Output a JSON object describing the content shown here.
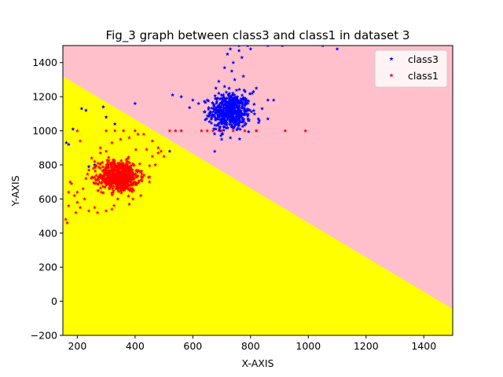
{
  "chart_data": {
    "type": "scatter",
    "title": "Fig_3 graph between class3 and class1 in dataset 3",
    "xlabel": "X-AXIS",
    "ylabel": "Y-AXIS",
    "xlim": [
      150,
      1500
    ],
    "ylim": [
      -200,
      1500
    ],
    "xticks": [
      200,
      400,
      600,
      800,
      1000,
      1200,
      1400
    ],
    "yticks": [
      -200,
      0,
      200,
      400,
      600,
      800,
      1000,
      1200,
      1400
    ],
    "grid": false,
    "legend_position": "top-right",
    "decision_boundary": {
      "points": [
        [
          150,
          1320
        ],
        [
          1500,
          -45
        ]
      ],
      "upper_region_color": "#ffc0cb",
      "lower_region_color": "#ffff00"
    },
    "series": [
      {
        "name": "class3",
        "color": "#0000ff",
        "marker": "star",
        "cluster": {
          "center": [
            730,
            1110
          ],
          "spread": [
            35,
            55
          ],
          "count": 520
        },
        "points": [
          [
            162,
            930
          ],
          [
            170,
            920
          ],
          [
            185,
            1010
          ],
          [
            215,
            1130
          ],
          [
            230,
            1120
          ],
          [
            240,
            790
          ],
          [
            260,
            800
          ],
          [
            290,
            1140
          ],
          [
            300,
            1080
          ],
          [
            330,
            1040
          ],
          [
            400,
            1160
          ],
          [
            520,
            880
          ],
          [
            530,
            1210
          ],
          [
            560,
            1200
          ],
          [
            600,
            1180
          ],
          [
            620,
            1160
          ],
          [
            660,
            1110
          ],
          [
            680,
            1010
          ],
          [
            690,
            1290
          ],
          [
            710,
            1370
          ],
          [
            720,
            1450
          ],
          [
            740,
            1400
          ],
          [
            760,
            1470
          ],
          [
            790,
            1500
          ],
          [
            810,
            1230
          ],
          [
            830,
            1060
          ],
          [
            860,
            1180
          ],
          [
            880,
            1180
          ],
          [
            910,
            1500
          ],
          [
            1050,
            1500
          ],
          [
            1100,
            1480
          ],
          [
            860,
            1500
          ],
          [
            760,
            1500
          ],
          [
            700,
            950
          ],
          [
            840,
            1130
          ],
          [
            820,
            1000
          ],
          [
            860,
            1070
          ],
          [
            650,
            1180
          ],
          [
            730,
            1480
          ],
          [
            770,
            1430
          ],
          [
            745,
            1300
          ],
          [
            710,
            1260
          ],
          [
            690,
            1220
          ],
          [
            800,
            1480
          ],
          [
            680,
            1250
          ],
          [
            735,
            1350
          ],
          [
            775,
            1320
          ],
          [
            640,
            1110
          ],
          [
            695,
            1000
          ],
          [
            820,
            1250
          ]
        ]
      },
      {
        "name": "class1",
        "color": "#ff0000",
        "marker": "star",
        "cluster": {
          "center": [
            345,
            735
          ],
          "spread": [
            35,
            45
          ],
          "count": 650
        },
        "points": [
          [
            160,
            480
          ],
          [
            165,
            460
          ],
          [
            170,
            640
          ],
          [
            180,
            690
          ],
          [
            190,
            620
          ],
          [
            200,
            580
          ],
          [
            210,
            550
          ],
          [
            220,
            660
          ],
          [
            230,
            720
          ],
          [
            240,
            770
          ],
          [
            250,
            840
          ],
          [
            300,
            1000
          ],
          [
            330,
            1000
          ],
          [
            360,
            1000
          ],
          [
            400,
            1000
          ],
          [
            430,
            980
          ],
          [
            460,
            940
          ],
          [
            480,
            900
          ],
          [
            490,
            880
          ],
          [
            500,
            850
          ],
          [
            520,
            1000
          ],
          [
            540,
            1000
          ],
          [
            560,
            1000
          ],
          [
            630,
            1000
          ],
          [
            650,
            1000
          ],
          [
            670,
            1000
          ],
          [
            700,
            1000
          ],
          [
            740,
            1000
          ],
          [
            780,
            1000
          ],
          [
            820,
            1000
          ],
          [
            920,
            1000
          ],
          [
            990,
            1000
          ],
          [
            200,
            1000
          ],
          [
            210,
            940
          ],
          [
            240,
            530
          ],
          [
            260,
            550
          ],
          [
            270,
            520
          ],
          [
            300,
            530
          ],
          [
            320,
            540
          ],
          [
            340,
            600
          ],
          [
            380,
            570
          ],
          [
            420,
            620
          ],
          [
            450,
            700
          ],
          [
            470,
            800
          ],
          [
            480,
            870
          ],
          [
            300,
            880
          ],
          [
            280,
            870
          ],
          [
            260,
            820
          ],
          [
            225,
            600
          ],
          [
            200,
            640
          ],
          [
            195,
            520
          ],
          [
            170,
            560
          ],
          [
            280,
            900
          ],
          [
            320,
            930
          ],
          [
            350,
            950
          ],
          [
            380,
            960
          ],
          [
            410,
            980
          ],
          [
            440,
            890
          ],
          [
            460,
            850
          ],
          [
            175,
            700
          ]
        ]
      }
    ]
  }
}
